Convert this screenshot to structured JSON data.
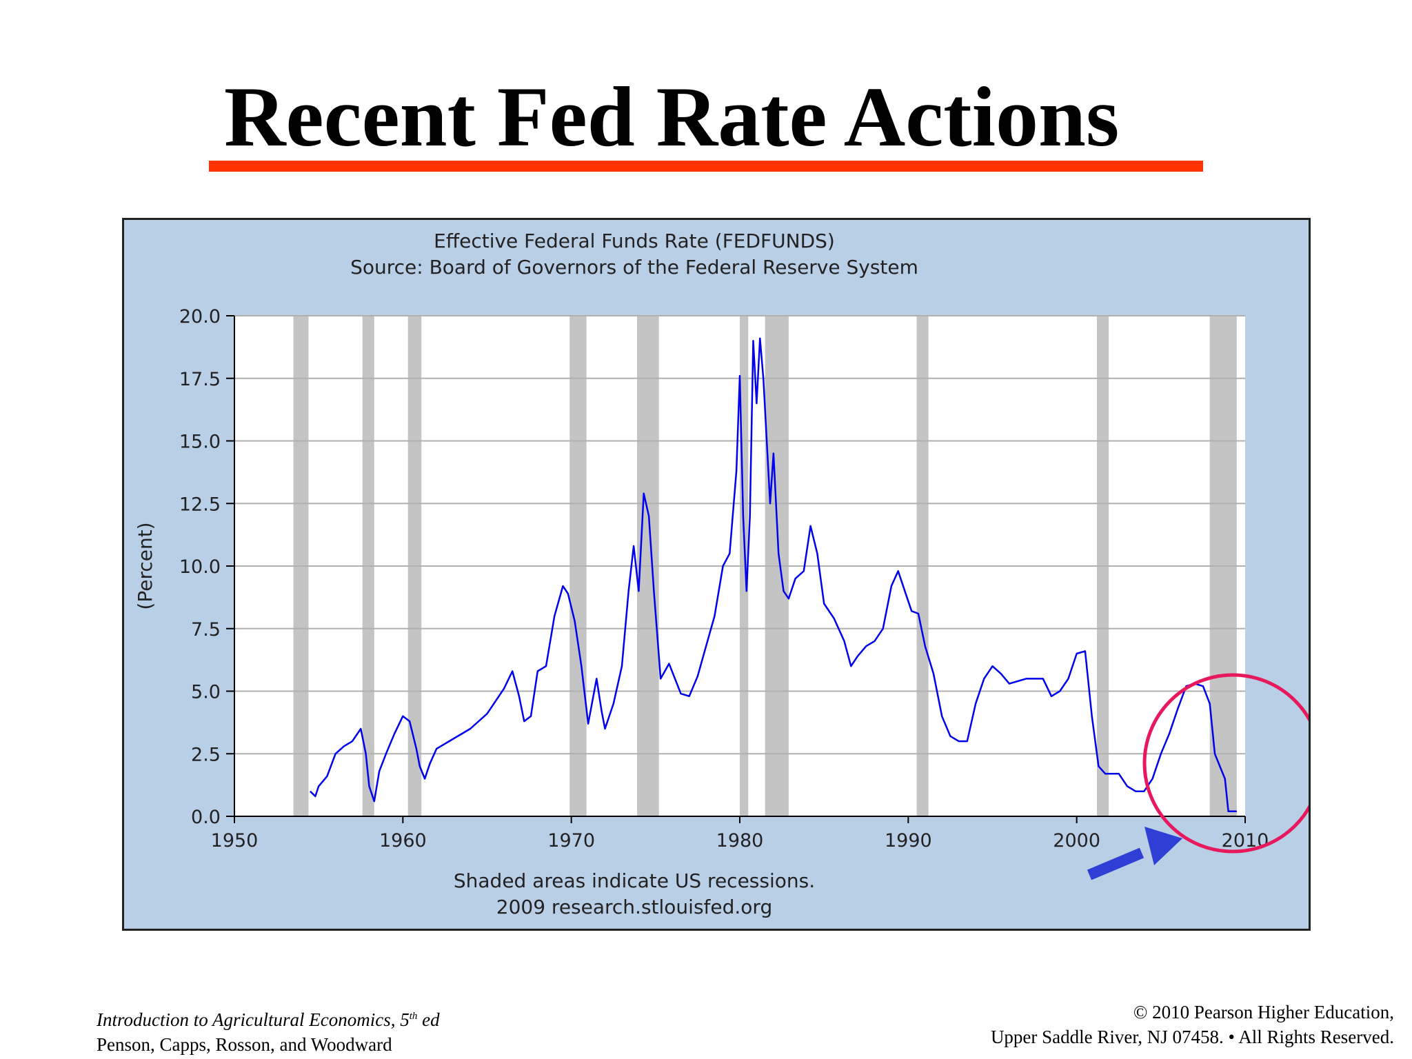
{
  "slide": {
    "title": "Recent Fed Rate Actions",
    "accent_color": "#ff3300"
  },
  "footer": {
    "book_title": "Introduction to Agricultural Economics, 5",
    "edition_sup": "th",
    "edition_suffix": " ed",
    "authors": "Penson, Capps, Rosson, and Woodward",
    "copyright_line1": "© 2010 Pearson Higher Education,",
    "copyright_line2": "Upper Saddle River, NJ 07458. • All Rights Reserved."
  },
  "annotations": {
    "highlight_circle_color": "#e8185c",
    "arrow_color": "#2f3fd6",
    "highlight_target_years": [
      2004,
      2010
    ]
  },
  "chart_data": {
    "type": "line",
    "title": "Effective Federal Funds Rate (FEDFUNDS)",
    "subtitle": "Source: Board of Governors of the Federal Reserve System",
    "xlabel": "",
    "ylabel": "(Percent)",
    "caption": "Shaded areas indicate US recessions.",
    "credit": "2009 research.stlouisfed.org",
    "xlim": [
      1950,
      2010
    ],
    "ylim": [
      0,
      20
    ],
    "x_ticks": [
      "1950",
      "1960",
      "1970",
      "1980",
      "1990",
      "2000",
      "2010"
    ],
    "y_ticks": [
      "0.0",
      "2.5",
      "5.0",
      "7.5",
      "10.0",
      "12.5",
      "15.0",
      "17.5",
      "20.0"
    ],
    "grid": true,
    "legend": "none",
    "colors": {
      "line": "#0000ee",
      "recession": "#c4c4c4",
      "panel": "#b8cfe6",
      "plot": "#ffffff"
    },
    "recessions": [
      [
        1953.5,
        1954.4
      ],
      [
        1957.6,
        1958.3
      ],
      [
        1960.3,
        1961.1
      ],
      [
        1969.9,
        1970.9
      ],
      [
        1973.9,
        1975.2
      ],
      [
        1980.0,
        1980.5
      ],
      [
        1981.5,
        1982.9
      ],
      [
        1990.5,
        1991.2
      ],
      [
        2001.2,
        2001.9
      ],
      [
        2007.9,
        2009.5
      ]
    ],
    "series": [
      {
        "x": [
          1954.5,
          1954.8,
          1955.0,
          1955.5,
          1956.0,
          1956.5,
          1957.0,
          1957.5,
          1957.8,
          1958.0,
          1958.3,
          1958.6,
          1959.0,
          1959.5,
          1960.0,
          1960.4,
          1960.8,
          1961.0,
          1961.3,
          1961.6,
          1962.0,
          1963.0,
          1964.0,
          1965.0,
          1966.0,
          1966.5,
          1966.9,
          1967.2,
          1967.6,
          1968.0,
          1968.5,
          1969.0,
          1969.5,
          1969.8,
          1970.2,
          1970.6,
          1971.0,
          1971.5,
          1971.8,
          1972.0,
          1972.5,
          1973.0,
          1973.4,
          1973.7,
          1974.0,
          1974.3,
          1974.6,
          1974.9,
          1975.3,
          1975.8,
          1976.5,
          1977.0,
          1977.5,
          1978.0,
          1978.5,
          1979.0,
          1979.4,
          1979.8,
          1980.0,
          1980.2,
          1980.4,
          1980.6,
          1980.8,
          1981.0,
          1981.2,
          1981.4,
          1981.6,
          1981.8,
          1982.0,
          1982.3,
          1982.6,
          1982.9,
          1983.3,
          1983.8,
          1984.2,
          1984.6,
          1985.0,
          1985.6,
          1986.2,
          1986.6,
          1987.0,
          1987.5,
          1988.0,
          1988.5,
          1989.0,
          1989.4,
          1989.8,
          1990.2,
          1990.6,
          1991.0,
          1991.5,
          1992.0,
          1992.5,
          1993.0,
          1993.5,
          1994.0,
          1994.5,
          1995.0,
          1995.5,
          1996.0,
          1996.5,
          1997.0,
          1997.5,
          1998.0,
          1998.5,
          1999.0,
          1999.5,
          2000.0,
          2000.5,
          2000.9,
          2001.3,
          2001.7,
          2002.0,
          2002.5,
          2003.0,
          2003.5,
          2004.0,
          2004.5,
          2005.0,
          2005.5,
          2006.0,
          2006.5,
          2007.0,
          2007.5,
          2007.9,
          2008.2,
          2008.5,
          2008.8,
          2009.0,
          2009.5
        ],
        "values": [
          1.0,
          0.8,
          1.2,
          1.6,
          2.5,
          2.8,
          3.0,
          3.5,
          2.5,
          1.2,
          0.6,
          1.8,
          2.5,
          3.3,
          4.0,
          3.8,
          2.7,
          2.0,
          1.5,
          2.1,
          2.7,
          3.1,
          3.5,
          4.1,
          5.1,
          5.8,
          4.8,
          3.8,
          4.0,
          5.8,
          6.0,
          8.0,
          9.2,
          8.9,
          7.8,
          6.0,
          3.7,
          5.5,
          4.2,
          3.5,
          4.5,
          6.0,
          9.0,
          10.8,
          9.0,
          12.9,
          12.0,
          9.0,
          5.5,
          6.1,
          4.9,
          4.8,
          5.6,
          6.8,
          8.0,
          10.0,
          10.5,
          13.8,
          17.6,
          12.0,
          9.0,
          12.0,
          19.0,
          16.5,
          19.1,
          17.5,
          15.0,
          12.5,
          14.5,
          10.5,
          9.0,
          8.7,
          9.5,
          9.8,
          11.6,
          10.5,
          8.5,
          7.9,
          7.0,
          6.0,
          6.4,
          6.8,
          7.0,
          7.5,
          9.2,
          9.8,
          9.0,
          8.2,
          8.1,
          6.8,
          5.7,
          4.0,
          3.2,
          3.0,
          3.0,
          4.5,
          5.5,
          6.0,
          5.7,
          5.3,
          5.4,
          5.5,
          5.5,
          5.5,
          4.8,
          5.0,
          5.5,
          6.5,
          6.6,
          4.0,
          2.0,
          1.7,
          1.7,
          1.7,
          1.2,
          1.0,
          1.0,
          1.5,
          2.5,
          3.3,
          4.3,
          5.2,
          5.3,
          5.2,
          4.5,
          2.5,
          2.0,
          1.5,
          0.2,
          0.2
        ]
      }
    ]
  }
}
